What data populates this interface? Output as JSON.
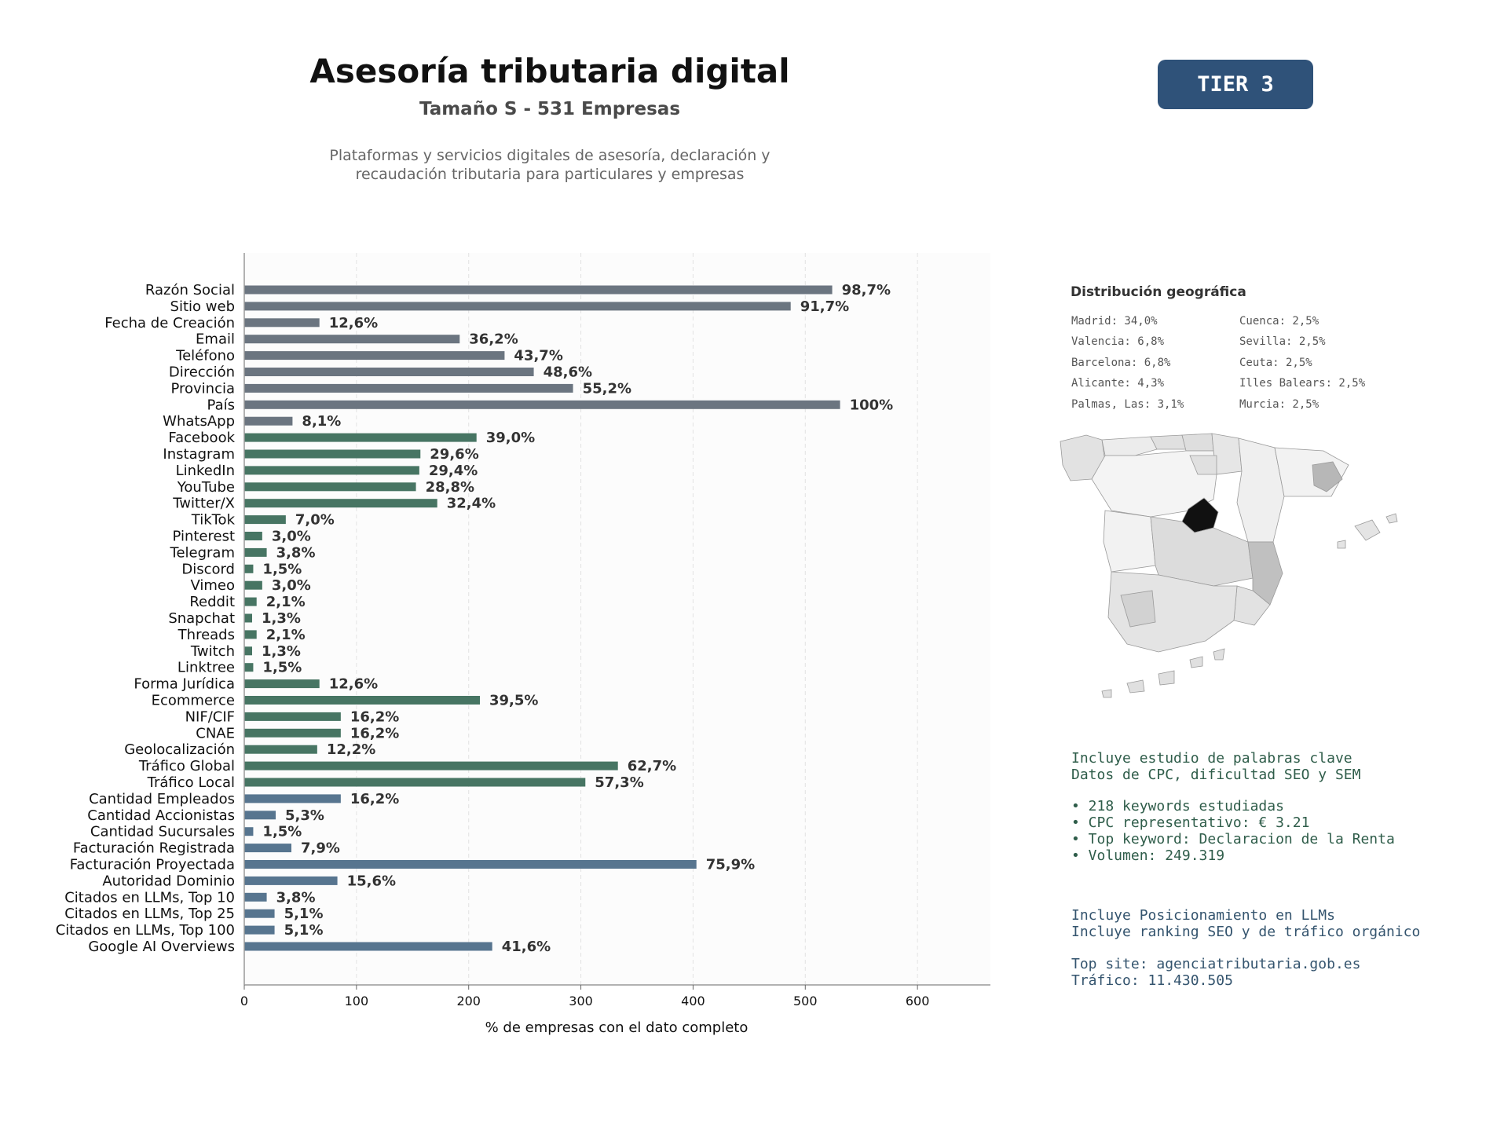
{
  "header": {
    "title": "Asesoría tributaria digital",
    "subtitle": "Tamaño S - 531 Empresas",
    "description_line1": "Plataformas y servicios digitales de asesoría, declaración y",
    "description_line2": "recaudación tributaria para particulares y empresas",
    "tier": "TIER 3"
  },
  "colors": {
    "gray": "#6b7580",
    "green": "#477563",
    "blue": "#57758f"
  },
  "chart_data": {
    "type": "bar",
    "orientation": "horizontal",
    "xlabel": "% de empresas con el dato completo",
    "xlim": [
      0,
      665
    ],
    "xticks": [
      0,
      100,
      200,
      300,
      400,
      500,
      600
    ],
    "categories": [
      "Razón Social",
      "Sitio web",
      "Fecha de Creación",
      "Email",
      "Teléfono",
      "Dirección",
      "Provincia",
      "País",
      "WhatsApp",
      "Facebook",
      "Instagram",
      "LinkedIn",
      "YouTube",
      "Twitter/X",
      "TikTok",
      "Pinterest",
      "Telegram",
      "Discord",
      "Vimeo",
      "Reddit",
      "Snapchat",
      "Threads",
      "Twitch",
      "Linktree",
      "Forma Jurídica",
      "Ecommerce",
      "NIF/CIF",
      "CNAE",
      "Geolocalización",
      "Tráfico Global",
      "Tráfico Local",
      "Cantidad Empleados",
      "Cantidad Accionistas",
      "Cantidad Sucursales",
      "Facturación Registrada",
      "Facturación Proyectada",
      "Autoridad Dominio",
      "Citados en LLMs, Top 10",
      "Citados en LLMs, Top 25",
      "Citados en LLMs, Top 100",
      "Google AI Overviews"
    ],
    "values": [
      524,
      487,
      67,
      192,
      232,
      258,
      293,
      531,
      43,
      207,
      157,
      156,
      153,
      172,
      37,
      16,
      20,
      8,
      16,
      11,
      7,
      11,
      7,
      8,
      67,
      210,
      86,
      86,
      65,
      333,
      304,
      86,
      28,
      8,
      42,
      403,
      83,
      20,
      27,
      27,
      221
    ],
    "value_labels": [
      "98,7%",
      "91,7%",
      "12,6%",
      "36,2%",
      "43,7%",
      "48,6%",
      "55,2%",
      "100%",
      "8,1%",
      "39,0%",
      "29,6%",
      "29,4%",
      "28,8%",
      "32,4%",
      "7,0%",
      "3,0%",
      "3,8%",
      "1,5%",
      "3,0%",
      "2,1%",
      "1,3%",
      "2,1%",
      "1,3%",
      "1,5%",
      "12,6%",
      "39,5%",
      "16,2%",
      "16,2%",
      "12,2%",
      "62,7%",
      "57,3%",
      "16,2%",
      "5,3%",
      "1,5%",
      "7,9%",
      "75,9%",
      "15,6%",
      "3,8%",
      "5,1%",
      "5,1%",
      "41,6%"
    ],
    "bar_groups": [
      "gray",
      "gray",
      "gray",
      "gray",
      "gray",
      "gray",
      "gray",
      "gray",
      "gray",
      "green",
      "green",
      "green",
      "green",
      "green",
      "green",
      "green",
      "green",
      "green",
      "green",
      "green",
      "green",
      "green",
      "green",
      "green",
      "green",
      "green",
      "green",
      "green",
      "green",
      "green",
      "green",
      "blue",
      "blue",
      "blue",
      "blue",
      "blue",
      "blue",
      "blue",
      "blue",
      "blue",
      "blue"
    ],
    "grid": "vertical dashed"
  },
  "geo": {
    "title": "Distribución geográfica",
    "left": [
      "Madrid: 34,0%",
      "Valencia: 6,8%",
      "Barcelona: 6,8%",
      "Alicante: 4,3%",
      "Palmas, Las: 3,1%"
    ],
    "right": [
      "Cuenca: 2,5%",
      "Sevilla: 2,5%",
      "Ceuta: 2,5%",
      "Illes Balears: 2,5%",
      "Murcia: 2,5%"
    ]
  },
  "keywords": {
    "line1": "Incluye estudio de palabras clave",
    "line2": "Datos de CPC, dificultad SEO y SEM",
    "bullets": [
      "• 218 keywords estudiadas",
      "• CPC representativo: € 3.21",
      "• Top keyword: Declaracion de la Renta",
      "• Volumen: 249.319"
    ]
  },
  "llm": {
    "line1": "Incluye Posicionamiento en LLMs",
    "line2": "Incluye ranking SEO y de tráfico orgánico",
    "top_site": "Top site: agenciatributaria.gob.es",
    "traffic": "Tráfico: 11.430.505"
  }
}
